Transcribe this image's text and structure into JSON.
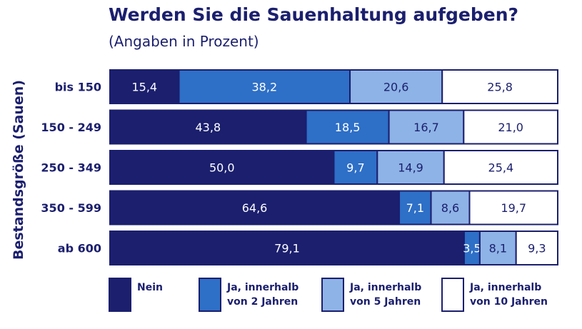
{
  "chart_data": {
    "type": "bar",
    "orientation": "horizontal",
    "stacked": true,
    "title": "Werden Sie die Sauenhaltung aufgeben?",
    "subtitle": "(Angaben in Prozent)",
    "ylabel": "Bestandsgröße (Sauen)",
    "xlim": [
      0,
      100
    ],
    "grid": false,
    "legend_position": "bottom",
    "categories": [
      "bis 150",
      "150 - 249",
      "250 - 349",
      "350 - 599",
      "ab 600"
    ],
    "series": [
      {
        "name": "Nein",
        "color": "#1b1f6e",
        "label_color": "#ffffff",
        "values": [
          15.4,
          43.8,
          50.0,
          64.6,
          79.1
        ]
      },
      {
        "name": "Ja, innerhalb\nvon 2 Jahren",
        "color": "#2e6fc7",
        "label_color": "#ffffff",
        "values": [
          38.2,
          18.5,
          9.7,
          7.1,
          3.5
        ]
      },
      {
        "name": "Ja, innerhalb\nvon 5 Jahren",
        "color": "#8eb3e6",
        "label_color": "#1b1f6e",
        "values": [
          20.6,
          16.7,
          14.9,
          8.6,
          8.1
        ]
      },
      {
        "name": "Ja, innerhalb\nvon 10 Jahren",
        "color": "#ffffff",
        "label_color": "#1b1f6e",
        "values": [
          25.8,
          21.0,
          25.4,
          19.7,
          9.3
        ]
      }
    ],
    "data_labels": [
      [
        "15,4",
        "43,8",
        "50,0",
        "64,6",
        "79,1"
      ],
      [
        "38,2",
        "18,5",
        "9,7",
        "7,1",
        "3,5"
      ],
      [
        "20,6",
        "16,7",
        "14,9",
        "8,6",
        "8,1"
      ],
      [
        "25,8",
        "21,0",
        "25,4",
        "19,7",
        "9,3"
      ]
    ]
  }
}
